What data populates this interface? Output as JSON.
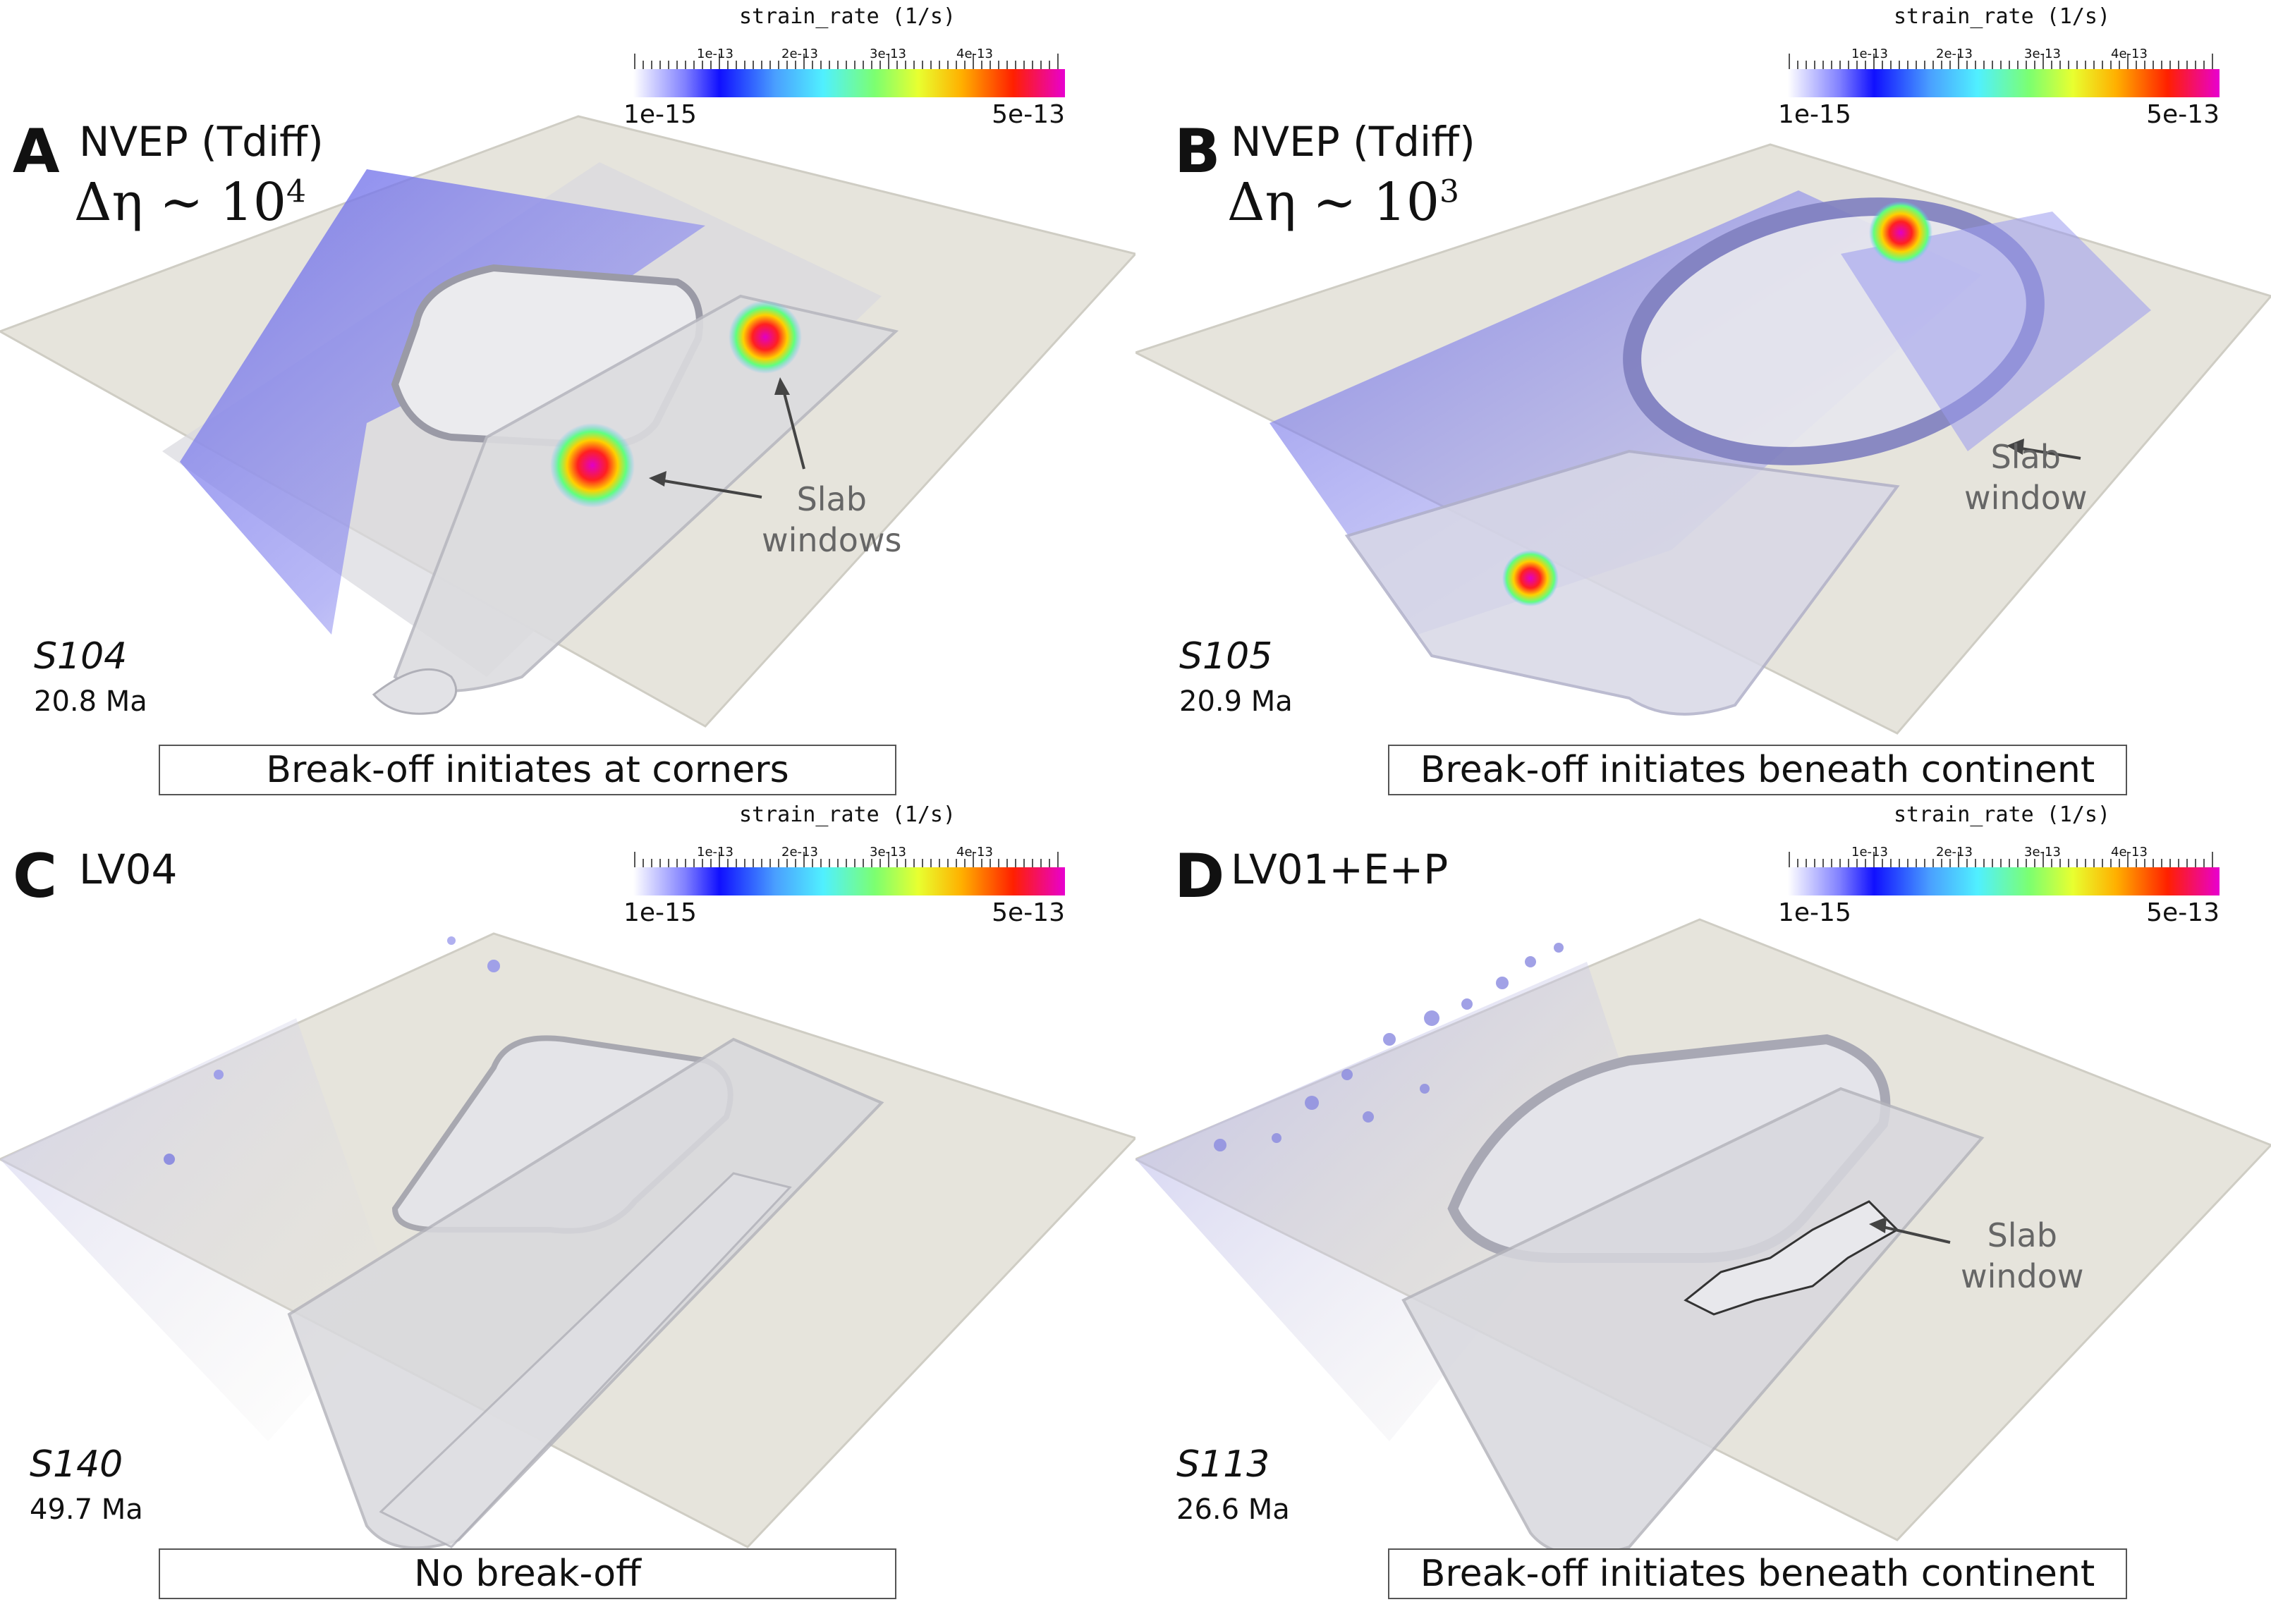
{
  "colorbar": {
    "title": "strain_rate (1/s)",
    "min_label": "1e-15",
    "max_label": "5e-13",
    "minor_labels": [
      "1e-13",
      "2e-13",
      "3e-13",
      "4e-13"
    ]
  },
  "panels": [
    {
      "letter": "A",
      "title": "NVEP (Tdiff)",
      "delta_eta": "Δη ∼ 10",
      "delta_eta_exp": "4",
      "sim": "S104",
      "age": "20.8 Ma",
      "caption": "Break-off initiates at corners",
      "annotation": [
        "Slab",
        "windows"
      ]
    },
    {
      "letter": "B",
      "title": "NVEP (Tdiff)",
      "delta_eta": "Δη ∼ 10",
      "delta_eta_exp": "3",
      "sim": "S105",
      "age": "20.9 Ma",
      "caption": "Break-off initiates beneath continent",
      "annotation": [
        "Slab",
        "window"
      ]
    },
    {
      "letter": "C",
      "title": "LV04",
      "sim": "S140",
      "age": "49.7 Ma",
      "caption": "No break-off"
    },
    {
      "letter": "D",
      "title": "LV01+E+P",
      "sim": "S113",
      "age": "26.6 Ma",
      "caption": "Break-off initiates beneath continent",
      "annotation": [
        "Slab",
        "window"
      ]
    }
  ]
}
